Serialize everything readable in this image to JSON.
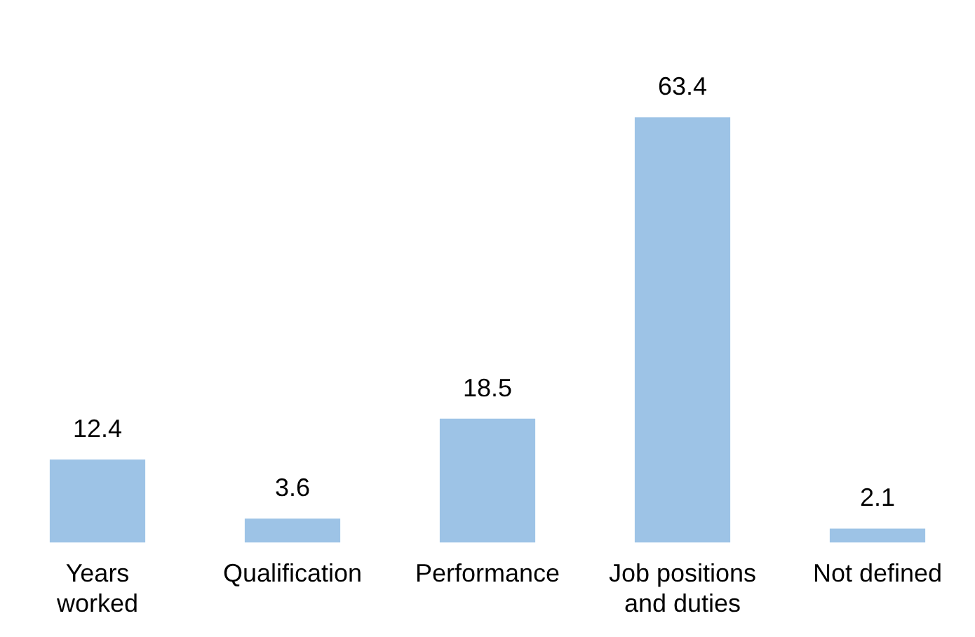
{
  "chart_data": {
    "type": "bar",
    "categories": [
      "Years worked",
      "Qualification",
      "Performance",
      "Job positions and duties",
      "Not defined"
    ],
    "values": [
      12.4,
      3.6,
      18.5,
      63.4,
      2.1
    ],
    "color": "#9dc3e6",
    "data_labels": true,
    "grid": false,
    "legend": false,
    "tick_labels": "x"
  }
}
